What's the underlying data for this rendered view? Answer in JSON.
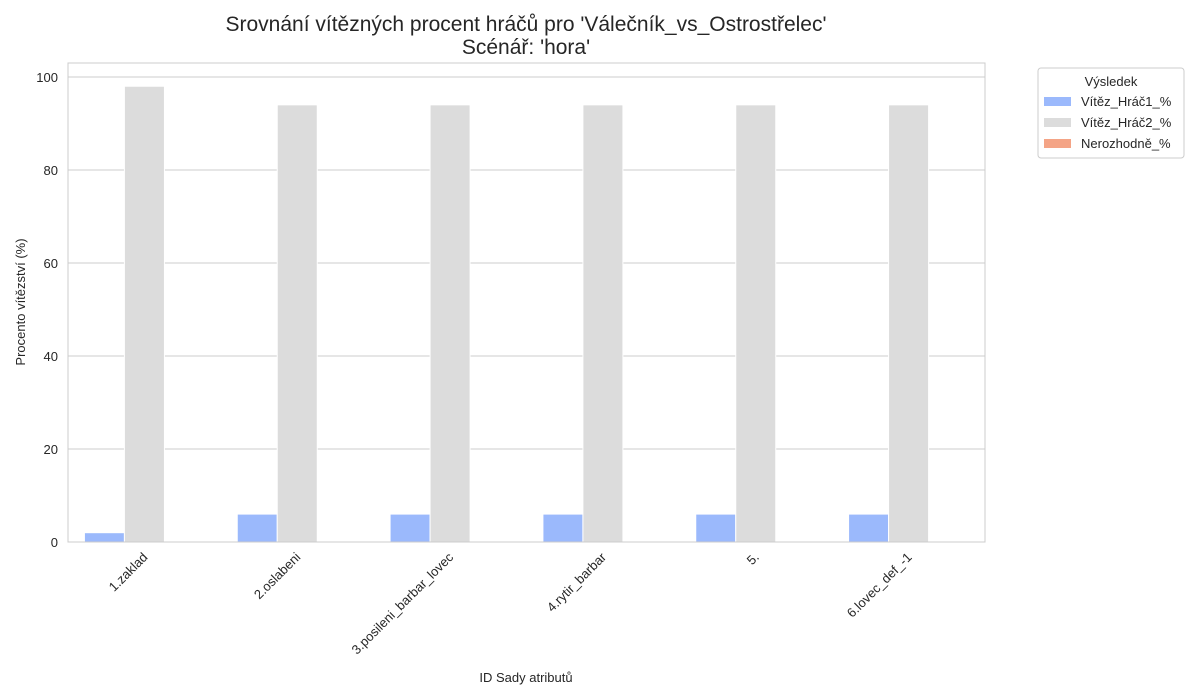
{
  "chart_data": {
    "type": "bar",
    "title": "Srovnání vítězných procent hráčů pro 'Válečník_vs_Ostrostřelec'",
    "subtitle": "Scénář: 'hora'",
    "xlabel": "ID Sady atributů",
    "ylabel": "Procento vítězství (%)",
    "categories": [
      "1.zaklad",
      "2.oslabeni",
      "3.posileni_barbar_lovec",
      "4.rytir_barbar",
      "5.",
      "6.lovec_def_-1"
    ],
    "series": [
      {
        "name": "Vítěz_Hráč1_%",
        "color": "#9bb9fc",
        "values": [
          2,
          6,
          6,
          6,
          6,
          6
        ]
      },
      {
        "name": "Vítěz_Hráč2_%",
        "color": "#dcdcdc",
        "values": [
          98,
          94,
          94,
          94,
          94,
          94
        ]
      },
      {
        "name": "Nerozhodně_%",
        "color": "#f4a486",
        "values": [
          0,
          0,
          0,
          0,
          0,
          0
        ]
      }
    ],
    "ylim": [
      0,
      103
    ],
    "yticks": [
      0,
      20,
      40,
      60,
      80,
      100
    ],
    "grid": true,
    "legend": {
      "title": "Výsledek",
      "placement": "outside-top-right"
    }
  }
}
